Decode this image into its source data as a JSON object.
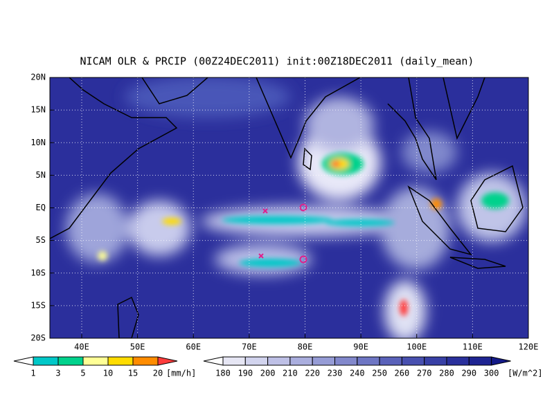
{
  "title": "NICAM OLR & PRCIP (00Z24DEC2011) init:00Z18DEC2011 (daily_mean)",
  "latitude_labels": [
    "20N",
    "15N",
    "10N",
    "5N",
    "EQ",
    "5S",
    "10S",
    "15S",
    "20S"
  ],
  "longitude_labels": [
    "40E",
    "50E",
    "60E",
    "70E",
    "80E",
    "90E",
    "100E",
    "110E",
    "120E"
  ],
  "precip_scale": {
    "labels": [
      1,
      3,
      5,
      10,
      15,
      20
    ],
    "unit": "[mm/h]"
  },
  "olr_scale": {
    "labels": [
      180,
      190,
      200,
      210,
      220,
      230,
      240,
      250,
      260,
      270,
      280,
      290,
      300
    ],
    "unit": "[W/m^2]"
  }
}
